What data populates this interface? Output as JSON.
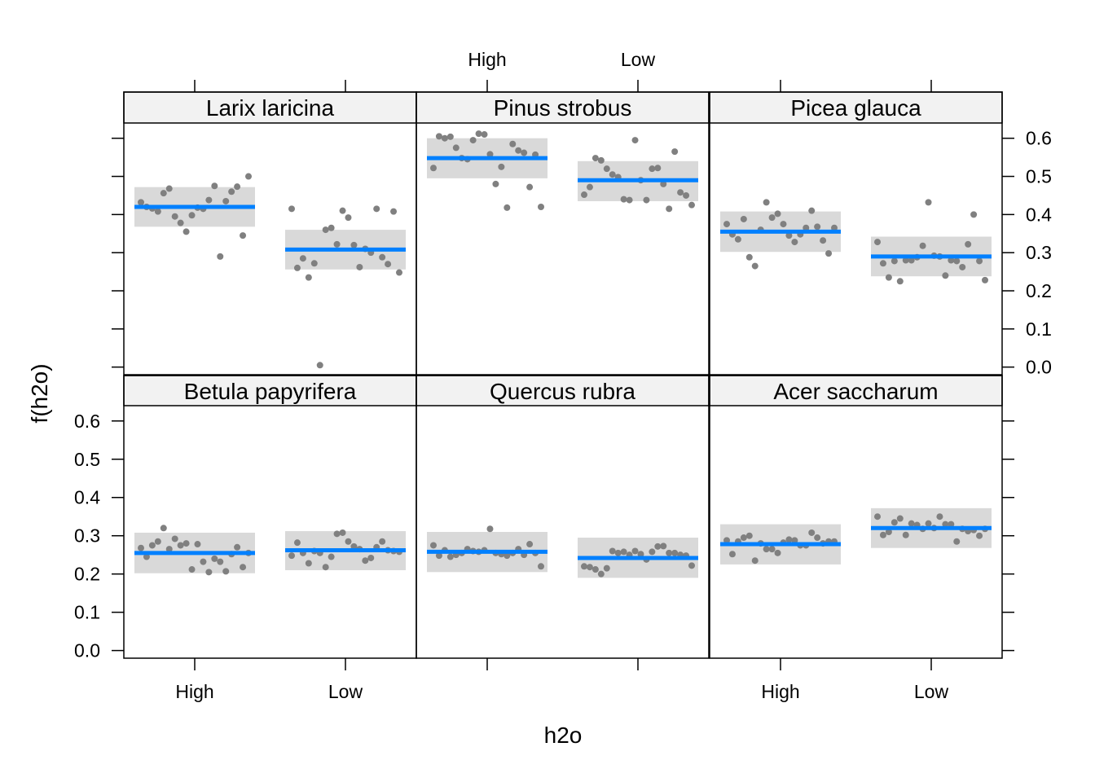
{
  "chart_data": {
    "type": "scatter",
    "layout": "lattice 3x2 panels",
    "xlabel": "h2o",
    "ylabel": "f(h2o)",
    "categories": [
      "High",
      "Low"
    ],
    "ylim": [
      -0.02,
      0.64
    ],
    "yticks": [
      "0.0",
      "0.1",
      "0.2",
      "0.3",
      "0.4",
      "0.5",
      "0.6"
    ],
    "colors": {
      "fit_line": "#0080ff",
      "band": "#d9d9d9",
      "points": "#808080",
      "strip": "#f2f2f2"
    },
    "panels": [
      {
        "title": "Larix laricina",
        "fit": {
          "High": {
            "mid": 0.42,
            "lo": 0.368,
            "hi": 0.472
          },
          "Low": {
            "mid": 0.308,
            "lo": 0.256,
            "hi": 0.36
          }
        },
        "points": {
          "High": [
            0.432,
            0.42,
            0.416,
            0.408,
            0.456,
            0.468,
            0.395,
            0.378,
            0.355,
            0.398,
            0.418,
            0.415,
            0.438,
            0.475,
            0.29,
            0.435,
            0.46,
            0.473,
            0.345,
            0.5
          ],
          "Low": [
            0.415,
            0.26,
            0.285,
            0.235,
            0.272,
            0.005,
            0.36,
            0.365,
            0.322,
            0.41,
            0.392,
            0.32,
            0.262,
            0.31,
            0.3,
            0.415,
            0.288,
            0.27,
            0.408,
            0.248
          ]
        }
      },
      {
        "title": "Pinus strobus",
        "fit": {
          "High": {
            "mid": 0.548,
            "lo": 0.495,
            "hi": 0.6
          },
          "Low": {
            "mid": 0.49,
            "lo": 0.435,
            "hi": 0.54
          }
        },
        "points": {
          "High": [
            0.522,
            0.605,
            0.6,
            0.604,
            0.575,
            0.548,
            0.545,
            0.595,
            0.612,
            0.61,
            0.558,
            0.48,
            0.525,
            0.418,
            0.585,
            0.568,
            0.562,
            0.472,
            0.557,
            0.42
          ],
          "Low": [
            0.452,
            0.472,
            0.548,
            0.542,
            0.52,
            0.505,
            0.498,
            0.44,
            0.438,
            0.595,
            0.49,
            0.438,
            0.52,
            0.522,
            0.48,
            0.415,
            0.565,
            0.458,
            0.45,
            0.425
          ]
        }
      },
      {
        "title": "Picea glauca",
        "fit": {
          "High": {
            "mid": 0.355,
            "lo": 0.302,
            "hi": 0.408
          },
          "Low": {
            "mid": 0.29,
            "lo": 0.238,
            "hi": 0.342
          }
        },
        "points": {
          "High": [
            0.375,
            0.348,
            0.335,
            0.388,
            0.288,
            0.265,
            0.36,
            0.432,
            0.392,
            0.402,
            0.375,
            0.345,
            0.328,
            0.348,
            0.365,
            0.41,
            0.368,
            0.332,
            0.298,
            0.365
          ],
          "Low": [
            0.328,
            0.272,
            0.235,
            0.278,
            0.225,
            0.28,
            0.28,
            0.288,
            0.318,
            0.432,
            0.292,
            0.29,
            0.24,
            0.28,
            0.278,
            0.262,
            0.322,
            0.4,
            0.278,
            0.228
          ]
        }
      },
      {
        "title": "Betula papyrifera",
        "fit": {
          "High": {
            "mid": 0.255,
            "lo": 0.202,
            "hi": 0.308
          },
          "Low": {
            "mid": 0.262,
            "lo": 0.21,
            "hi": 0.312
          }
        },
        "points": {
          "High": [
            0.268,
            0.245,
            0.275,
            0.285,
            0.32,
            0.265,
            0.292,
            0.275,
            0.28,
            0.212,
            0.278,
            0.232,
            0.205,
            0.24,
            0.232,
            0.207,
            0.252,
            0.27,
            0.218,
            0.255
          ],
          "Low": [
            0.248,
            0.282,
            0.255,
            0.228,
            0.26,
            0.255,
            0.218,
            0.245,
            0.305,
            0.308,
            0.285,
            0.272,
            0.265,
            0.235,
            0.242,
            0.27,
            0.285,
            0.262,
            0.26,
            0.258
          ]
        }
      },
      {
        "title": "Quercus rubra",
        "fit": {
          "High": {
            "mid": 0.258,
            "lo": 0.205,
            "hi": 0.31
          },
          "Low": {
            "mid": 0.242,
            "lo": 0.19,
            "hi": 0.295
          }
        },
        "points": {
          "High": [
            0.275,
            0.248,
            0.262,
            0.245,
            0.25,
            0.255,
            0.265,
            0.26,
            0.258,
            0.262,
            0.318,
            0.255,
            0.252,
            0.248,
            0.255,
            0.265,
            0.25,
            0.278,
            0.255,
            0.22
          ],
          "Low": [
            0.22,
            0.218,
            0.212,
            0.2,
            0.215,
            0.26,
            0.255,
            0.258,
            0.25,
            0.26,
            0.252,
            0.238,
            0.258,
            0.272,
            0.273,
            0.255,
            0.255,
            0.25,
            0.248,
            0.222
          ]
        }
      },
      {
        "title": "Acer saccharum",
        "fit": {
          "High": {
            "mid": 0.278,
            "lo": 0.225,
            "hi": 0.33
          },
          "Low": {
            "mid": 0.32,
            "lo": 0.268,
            "hi": 0.372
          }
        },
        "points": {
          "High": [
            0.288,
            0.252,
            0.285,
            0.295,
            0.3,
            0.235,
            0.28,
            0.265,
            0.265,
            0.255,
            0.282,
            0.29,
            0.288,
            0.275,
            0.275,
            0.308,
            0.295,
            0.28,
            0.285,
            0.285
          ],
          "Low": [
            0.35,
            0.302,
            0.31,
            0.335,
            0.345,
            0.302,
            0.332,
            0.328,
            0.318,
            0.332,
            0.32,
            0.35,
            0.33,
            0.33,
            0.285,
            0.318,
            0.312,
            0.315,
            0.3,
            0.318
          ]
        }
      }
    ]
  }
}
